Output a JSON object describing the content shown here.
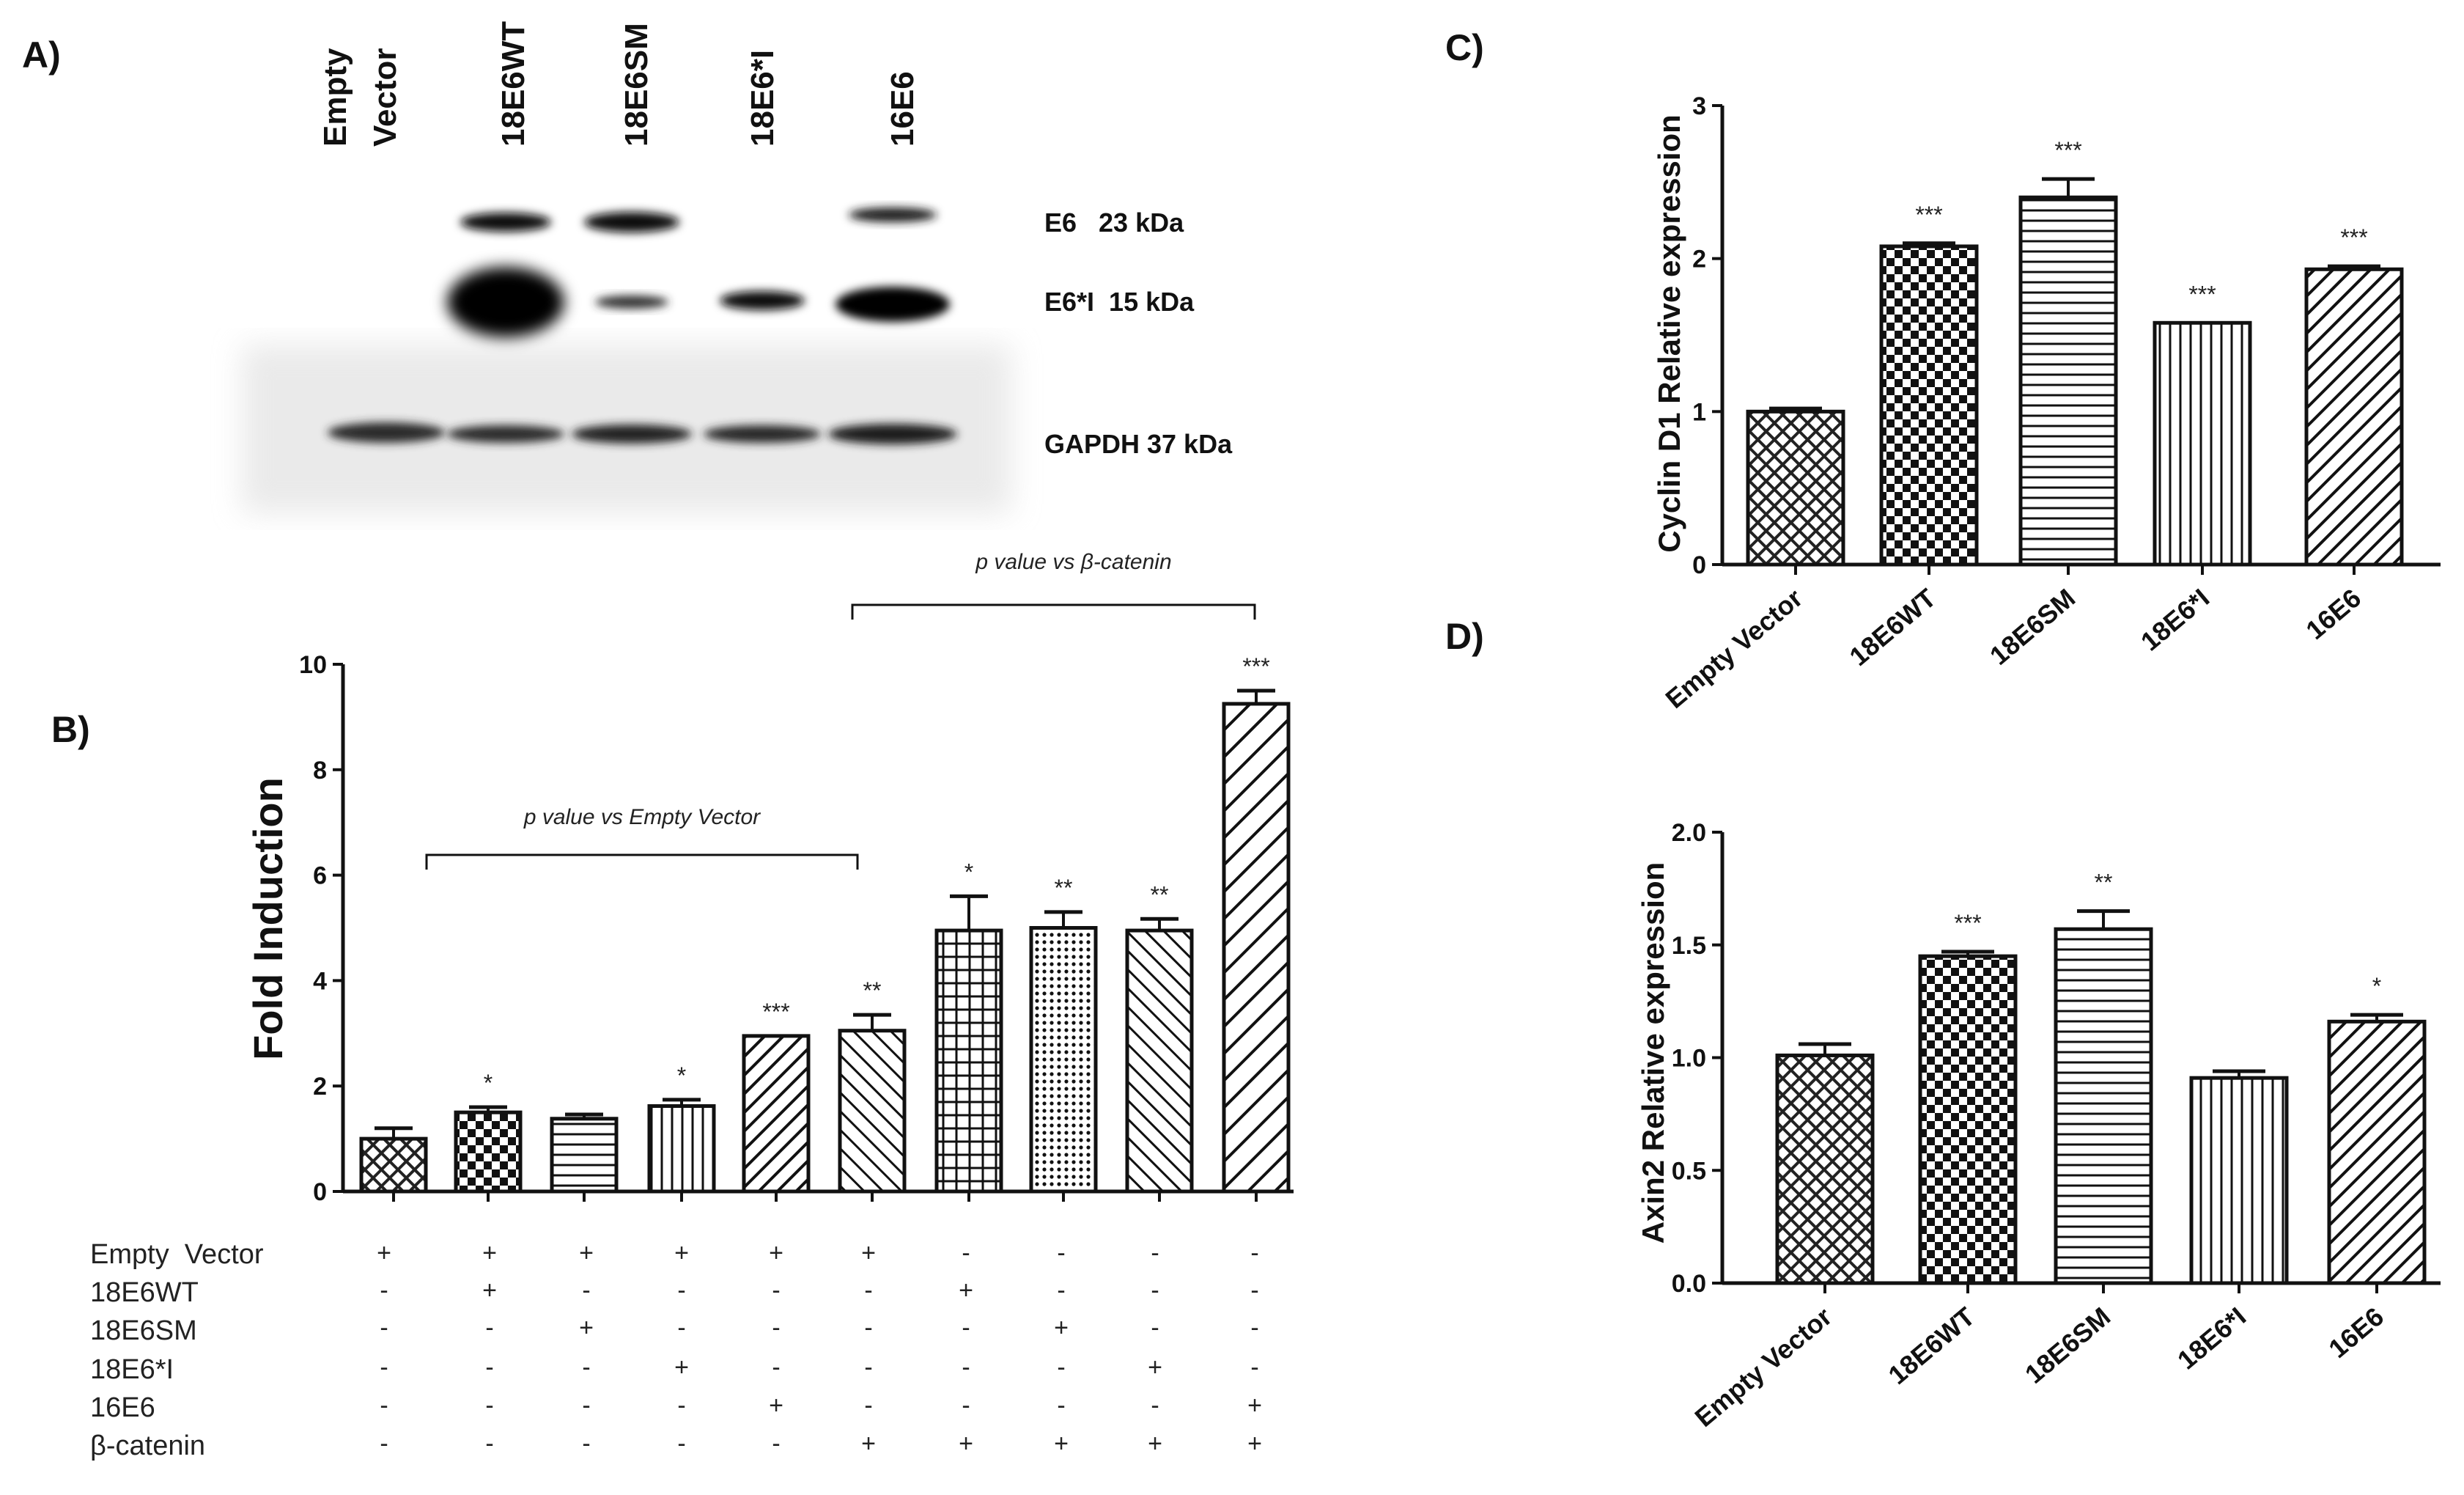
{
  "panel_labels": {
    "a": "A)",
    "b": "B)",
    "c": "C)",
    "d": "D)"
  },
  "blot": {
    "lanes": [
      "Empty Vector",
      "18E6WT",
      "18E6SM",
      "18E6*I",
      "16E6"
    ],
    "band_labels": [
      "E6   23 kDa",
      "E6*I  15 kDa",
      "GAPDH 37 kDa"
    ]
  },
  "panel_b": {
    "annotations": {
      "left": "p value vs Empty Vector",
      "right": "p value vs β-catenin"
    },
    "condition_names": [
      "Empty  Vector",
      "18E6WT",
      "18E6SM",
      "18E6*I",
      "16E6",
      "β-catenin"
    ],
    "condition_matrix": [
      [
        "+",
        "+",
        "+",
        "+",
        "+",
        "+",
        "-",
        "-",
        "-",
        "-"
      ],
      [
        "-",
        "+",
        "-",
        "-",
        "-",
        "-",
        "+",
        "-",
        "-",
        "-"
      ],
      [
        "-",
        "-",
        "+",
        "-",
        "-",
        "-",
        "-",
        "+",
        "-",
        "-"
      ],
      [
        "-",
        "-",
        "-",
        "+",
        "-",
        "-",
        "-",
        "-",
        "+",
        "-"
      ],
      [
        "-",
        "-",
        "-",
        "-",
        "+",
        "-",
        "-",
        "-",
        "-",
        "+"
      ],
      [
        "-",
        "-",
        "-",
        "-",
        "-",
        "+",
        "+",
        "+",
        "+",
        "+"
      ]
    ]
  },
  "chart_data": [
    {
      "id": "B",
      "type": "bar",
      "ylabel": "Fold Induction",
      "ylim": [
        0,
        10
      ],
      "yticks": [
        "0",
        "2",
        "4",
        "6",
        "8",
        "10"
      ],
      "values": [
        1.0,
        1.5,
        1.38,
        1.62,
        2.95,
        3.05,
        4.95,
        5.0,
        4.95,
        9.25
      ],
      "errors": [
        0.2,
        0.1,
        0.08,
        0.12,
        0.0,
        0.3,
        0.65,
        0.3,
        0.22,
        0.25
      ],
      "significance": [
        "",
        "*",
        "",
        "*",
        "***",
        "**",
        "*",
        "**",
        "**",
        "***"
      ]
    },
    {
      "id": "C",
      "type": "bar",
      "categories": [
        "Empty Vector",
        "18E6WT",
        "18E6SM",
        "18E6*I",
        "16E6"
      ],
      "ylabel": "Cyclin D1 Relative expression",
      "ylim": [
        0,
        3
      ],
      "yticks": [
        "0",
        "1",
        "2",
        "3"
      ],
      "values": [
        1.0,
        2.08,
        2.4,
        1.58,
        1.93
      ],
      "errors": [
        0.02,
        0.02,
        0.12,
        0.0,
        0.02
      ],
      "significance": [
        "",
        "***",
        "***",
        "***",
        "***"
      ]
    },
    {
      "id": "D",
      "type": "bar",
      "categories": [
        "Empty Vector",
        "18E6WT",
        "18E6SM",
        "18E6*I",
        "16E6"
      ],
      "ylabel": "Axin2 Relative expression",
      "ylim": [
        0,
        2.0
      ],
      "yticks": [
        "0.0",
        "0.5",
        "1.0",
        "1.5",
        "2.0"
      ],
      "values": [
        1.01,
        1.45,
        1.57,
        0.91,
        1.16
      ],
      "errors": [
        0.05,
        0.02,
        0.08,
        0.03,
        0.03
      ],
      "significance": [
        "",
        "***",
        "**",
        "",
        "*"
      ]
    }
  ]
}
